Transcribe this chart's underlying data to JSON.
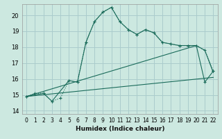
{
  "title": "",
  "xlabel": "Humidex (Indice chaleur)",
  "bg_color": "#cce8e0",
  "grid_color": "#aacccc",
  "line_color": "#1a6b5a",
  "xlim": [
    -0.5,
    22.5
  ],
  "ylim": [
    13.8,
    20.7
  ],
  "yticks": [
    14,
    15,
    16,
    17,
    18,
    19,
    20
  ],
  "xticks": [
    0,
    1,
    2,
    3,
    4,
    5,
    6,
    7,
    8,
    9,
    10,
    11,
    12,
    13,
    14,
    15,
    16,
    17,
    18,
    19,
    20,
    21,
    22
  ],
  "line1_x": [
    0,
    1,
    2,
    3,
    4,
    5,
    6,
    7,
    8,
    9,
    10,
    11,
    12,
    13,
    14,
    15,
    16,
    17,
    18,
    19,
    20,
    21,
    22
  ],
  "line1_y": [
    14.9,
    15.1,
    15.1,
    14.6,
    14.8,
    15.9,
    15.8,
    18.3,
    19.6,
    20.2,
    20.5,
    19.6,
    19.1,
    18.8,
    19.1,
    18.9,
    18.3,
    18.2,
    18.1,
    18.1,
    18.1,
    17.8,
    16.5
  ],
  "line2_x": [
    0,
    2,
    3,
    5,
    6,
    7,
    8,
    9,
    10,
    11,
    12,
    13,
    14,
    15,
    16,
    17,
    18,
    19,
    20,
    21,
    22
  ],
  "line2_y": [
    14.9,
    15.1,
    14.6,
    15.9,
    15.8,
    18.3,
    19.6,
    20.2,
    20.5,
    19.6,
    19.1,
    18.8,
    19.1,
    18.9,
    18.3,
    18.2,
    18.1,
    18.1,
    18.1,
    15.8,
    16.5
  ],
  "line3_x": [
    0,
    20,
    21,
    22
  ],
  "line3_y": [
    14.9,
    18.1,
    17.8,
    16.4
  ],
  "line4_x": [
    0,
    22
  ],
  "line4_y": [
    14.9,
    16.1
  ]
}
